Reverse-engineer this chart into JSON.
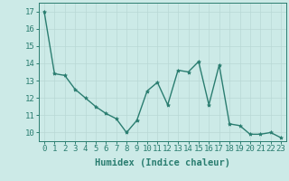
{
  "x": [
    0,
    1,
    2,
    3,
    4,
    5,
    6,
    7,
    8,
    9,
    10,
    11,
    12,
    13,
    14,
    15,
    16,
    17,
    18,
    19,
    20,
    21,
    22,
    23
  ],
  "y": [
    17.0,
    13.4,
    13.3,
    12.5,
    12.0,
    11.5,
    11.1,
    10.8,
    10.0,
    10.7,
    12.4,
    12.9,
    11.6,
    13.6,
    13.5,
    14.1,
    11.6,
    13.9,
    10.5,
    10.4,
    9.9,
    9.9,
    10.0,
    9.7
  ],
  "line_color": "#2a7d70",
  "marker": "*",
  "marker_size": 3,
  "bg_color": "#cceae7",
  "grid_color": "#b8d8d5",
  "xlabel": "Humidex (Indice chaleur)",
  "xlim": [
    -0.5,
    23.5
  ],
  "ylim": [
    9.5,
    17.5
  ],
  "yticks": [
    10,
    11,
    12,
    13,
    14,
    15,
    16,
    17
  ],
  "xticks": [
    0,
    1,
    2,
    3,
    4,
    5,
    6,
    7,
    8,
    9,
    10,
    11,
    12,
    13,
    14,
    15,
    16,
    17,
    18,
    19,
    20,
    21,
    22,
    23
  ],
  "xlabel_fontsize": 7.5,
  "tick_fontsize": 6.5,
  "tick_color": "#2a7d70",
  "axis_color": "#2a7d70",
  "linewidth": 1.0
}
